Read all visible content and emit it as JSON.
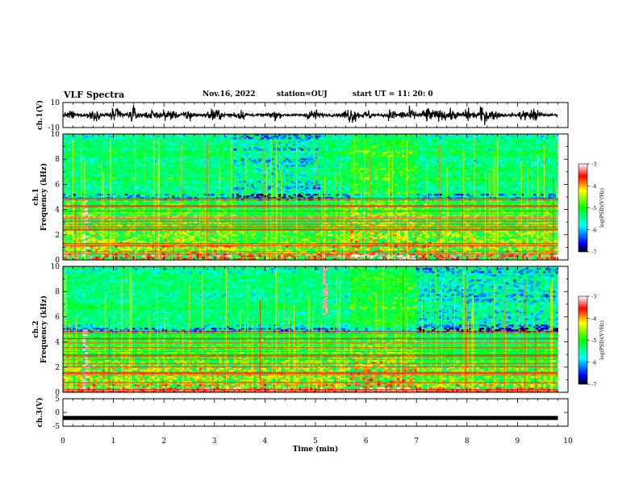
{
  "header": {
    "title": "VLF Spectra",
    "date": "Nov.16, 2022",
    "station": "station=OUJ",
    "start_ut": "start  UT =  11: 20: 0"
  },
  "chart_data": [
    {
      "type": "line",
      "name": "waveform-ch1",
      "ylabel": "ch.1(V)",
      "ylim": [
        -10,
        10
      ],
      "yticks": [
        "10",
        "-10"
      ],
      "xlim": [
        0,
        10
      ],
      "burst_times_min": [
        0.15,
        0.6,
        1.05,
        1.4,
        1.75,
        2.1,
        2.5,
        3.0,
        3.5,
        4.2,
        4.95,
        5.7,
        6.05,
        6.5,
        6.85,
        7.2,
        7.4,
        7.65,
        8.0,
        8.3,
        8.5,
        9.1,
        9.35
      ]
    },
    {
      "type": "heatmap",
      "name": "spectrogram-ch1",
      "ylabel": "ch.1\nFrequency (kHz)",
      "ylabel_line1": "ch.1",
      "ylabel_line2": "Frequency (kHz)",
      "ylim": [
        0,
        10
      ],
      "yticks": [
        "0",
        "2",
        "4",
        "6",
        "8",
        "10"
      ],
      "xlim": [
        0,
        10
      ],
      "data_end_min": 9.8,
      "colorbar": {
        "label": "log(PSD)(V²/Hz)",
        "range": [
          -7,
          -3
        ],
        "ticks": [
          "-3",
          "-4",
          "-5",
          "-6",
          "-7"
        ]
      }
    },
    {
      "type": "heatmap",
      "name": "spectrogram-ch2",
      "ylabel": "ch.2\nFrequency (kHz)",
      "ylabel_line1": "ch.2",
      "ylabel_line2": "Frequency (kHz)",
      "ylim": [
        0,
        10
      ],
      "yticks": [
        "0",
        "2",
        "4",
        "6",
        "8",
        "10"
      ],
      "xlim": [
        0,
        10
      ],
      "data_end_min": 9.8,
      "colorbar": {
        "label": "log(PSD)(V²/Hz)",
        "range": [
          -7,
          -3
        ],
        "ticks": [
          "-3",
          "-4",
          "-5",
          "-6",
          "-7"
        ]
      }
    },
    {
      "type": "line",
      "name": "waveform-ch3",
      "ylabel": "ch.3(V)",
      "ylim": [
        -5,
        5
      ],
      "yticks": [
        "5",
        "0",
        "-5"
      ],
      "xlim": [
        0,
        10
      ],
      "level_v": -2.0,
      "data_end_min": 9.8,
      "xlabel": "Time (min)",
      "xticks": [
        "0",
        "1",
        "2",
        "3",
        "4",
        "5",
        "6",
        "7",
        "8",
        "9",
        "10"
      ]
    }
  ]
}
